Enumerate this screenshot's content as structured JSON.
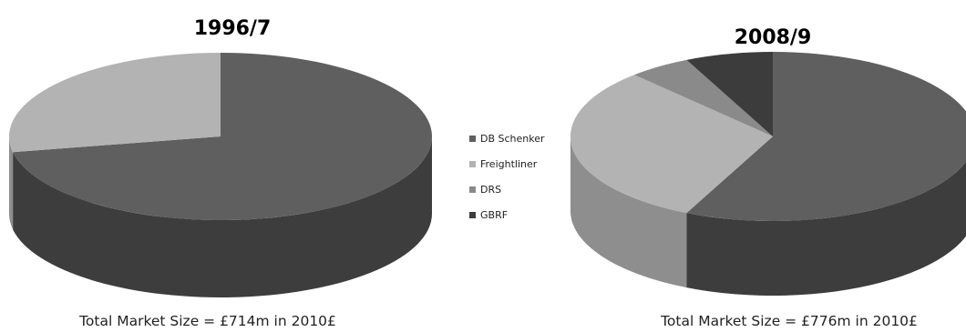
{
  "chart_data": [
    {
      "type": "pie",
      "title": "1996/7",
      "caption": "Total Market Size = £714m in 2010£",
      "categories": [
        "DB Schenker",
        "Freightliner",
        "DRS",
        "GBRF"
      ],
      "values": [
        72,
        28,
        0,
        0
      ],
      "style": "3d"
    },
    {
      "type": "pie",
      "title": "2008/9",
      "caption": "Total Market Size = £776m in 2010£",
      "categories": [
        "DB Schenker",
        "Freightliner",
        "DRS",
        "GBRF"
      ],
      "values": [
        57,
        31,
        5,
        7
      ],
      "style": "3d"
    }
  ],
  "legend": {
    "placement": "center",
    "items": [
      {
        "label": "DB Schenker",
        "color": "#5f5f5f"
      },
      {
        "label": "Freightliner",
        "color": "#b3b3b3"
      },
      {
        "label": "DRS",
        "color": "#8a8a8a"
      },
      {
        "label": "GBRF",
        "color": "#3c3c3c"
      }
    ]
  },
  "colors": {
    "DB Schenker": {
      "top": "#5f5f5f",
      "side": "#3d3d3d"
    },
    "Freightliner": {
      "top": "#b3b3b3",
      "side": "#8e8e8e"
    },
    "DRS": {
      "top": "#8a8a8a",
      "side": "#6a6a6a"
    },
    "GBRF": {
      "top": "#3c3c3c",
      "side": "#262626"
    }
  }
}
